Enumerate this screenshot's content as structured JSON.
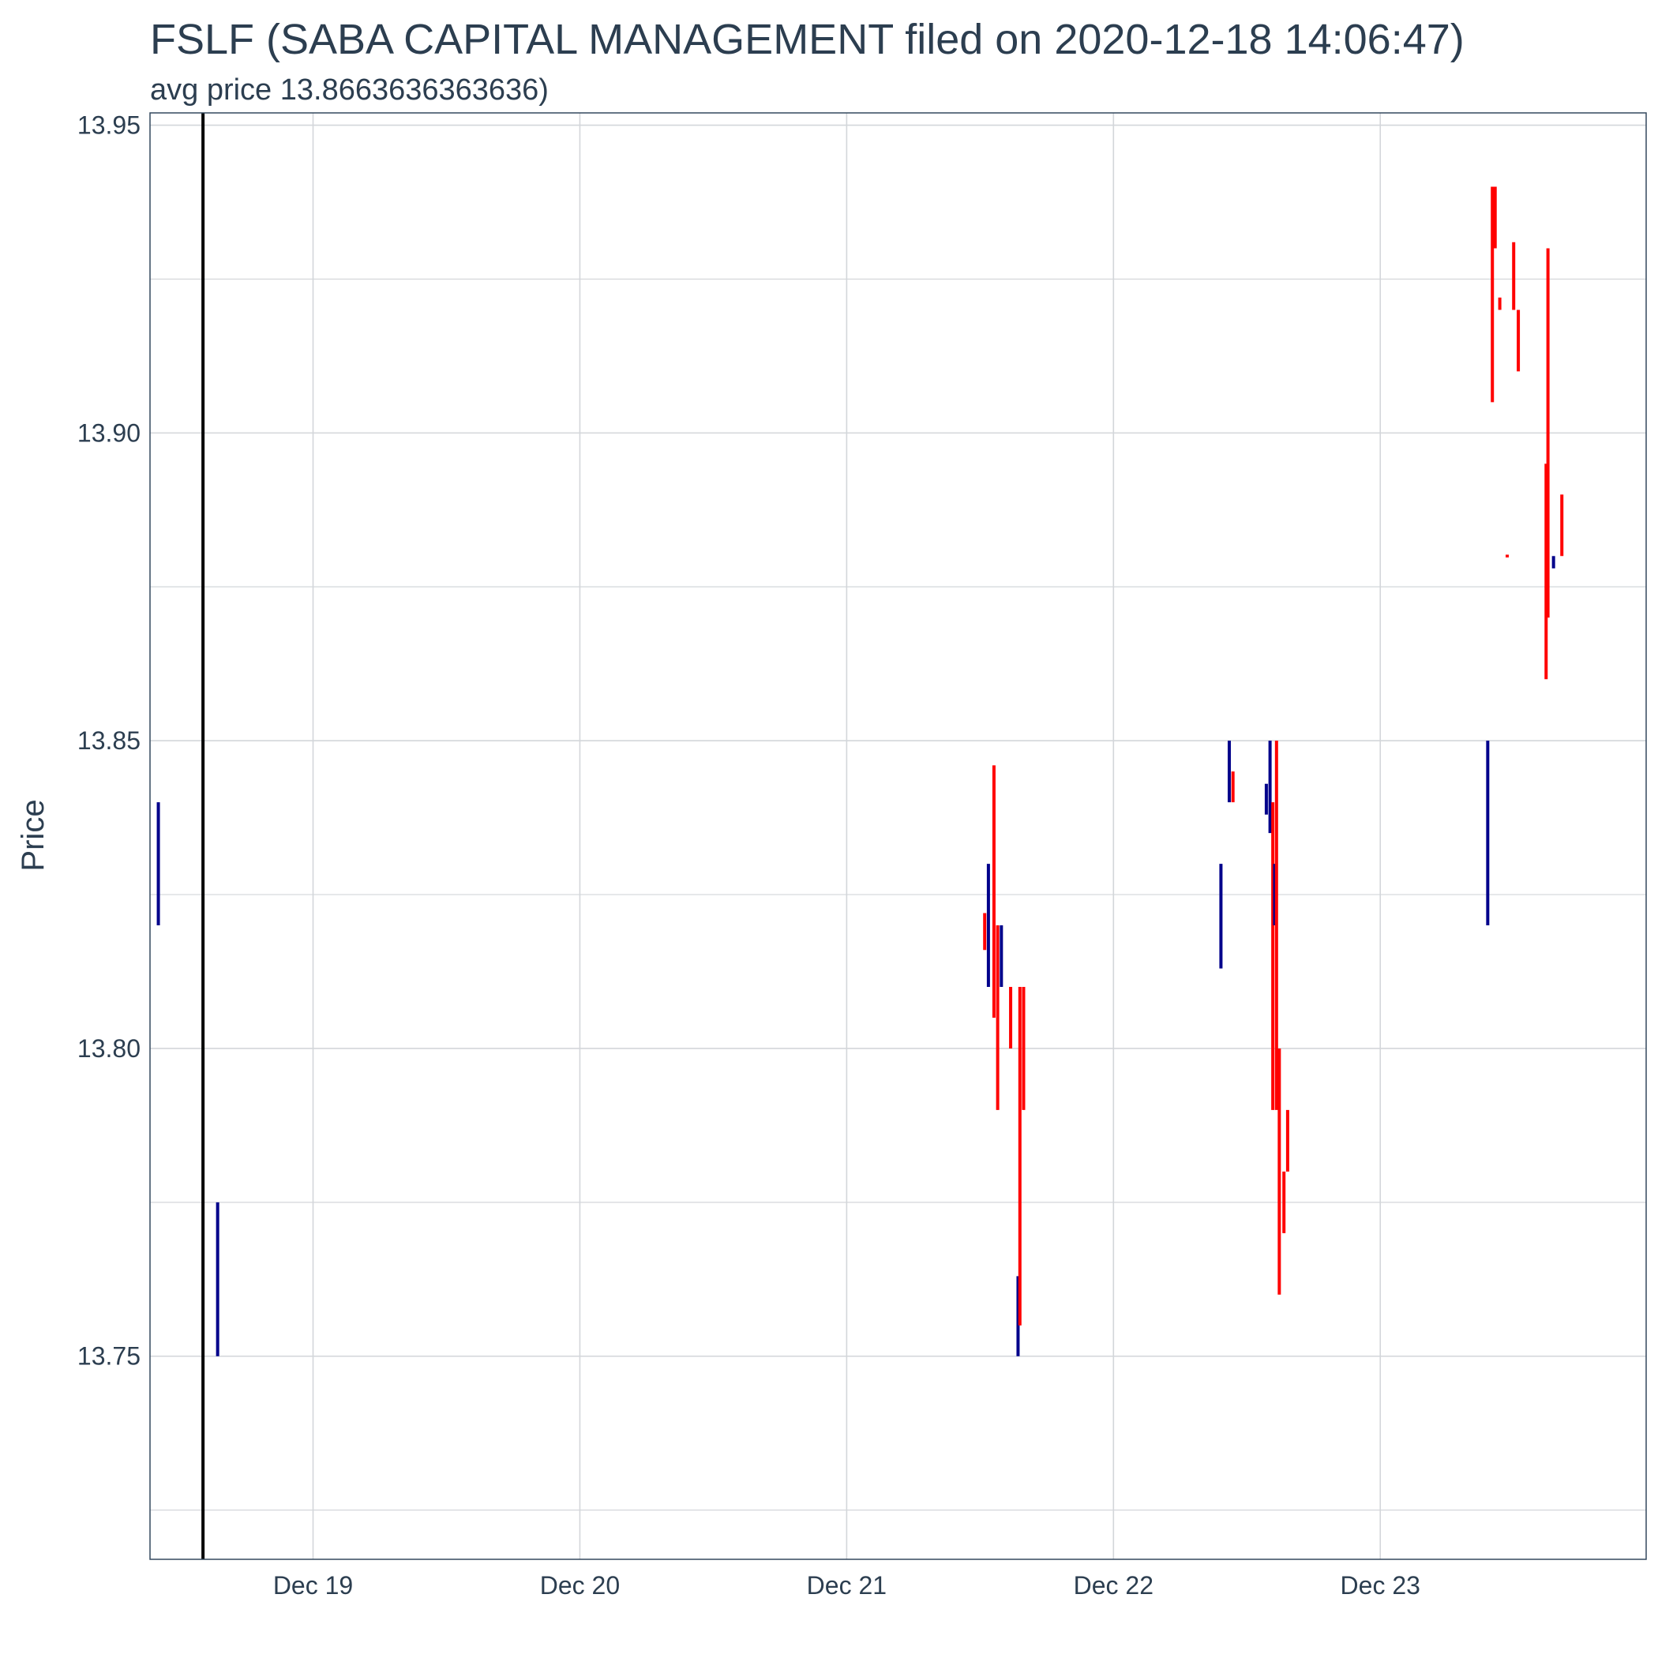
{
  "chart_data": {
    "type": "ohlc",
    "title": "FSLF (SABA CAPITAL MANAGEMENT filed on 2020-12-18 14:06:47)",
    "subtitle": "avg price 13.8663636363636)",
    "xlabel": "",
    "ylabel": "Price",
    "x_axis_type": "date",
    "xlim": [
      "2020-12-18T09:20",
      "2020-12-23T23:55"
    ],
    "ylim": [
      13.717,
      13.952
    ],
    "x_ticks": [
      {
        "date": "2020-12-19T00:00",
        "label": "Dec 19"
      },
      {
        "date": "2020-12-20T00:00",
        "label": "Dec 20"
      },
      {
        "date": "2020-12-21T00:00",
        "label": "Dec 21"
      },
      {
        "date": "2020-12-22T00:00",
        "label": "Dec 22"
      },
      {
        "date": "2020-12-23T00:00",
        "label": "Dec 23"
      }
    ],
    "y_ticks": [
      13.75,
      13.8,
      13.85,
      13.9,
      13.95
    ],
    "y_tick_labels": [
      "13.75",
      "13.80",
      "13.85",
      "13.90",
      "13.95"
    ],
    "y_minor_ticks": [
      13.725,
      13.775,
      13.825,
      13.875,
      13.925
    ],
    "grid": true,
    "colors": {
      "up": "#00008b",
      "down": "#ff0000",
      "filing_line": "#000000",
      "grid": "#d3d6da",
      "text": "#2c3e50"
    },
    "filing_marker": "2020-12-18T14:06",
    "bars": [
      {
        "t": "2020-12-18T10:05",
        "low": 13.82,
        "high": 13.84,
        "dir": "up"
      },
      {
        "t": "2020-12-18T15:25",
        "low": 13.75,
        "high": 13.775,
        "dir": "up"
      },
      {
        "t": "2020-12-21T12:25",
        "low": 13.816,
        "high": 13.822,
        "dir": "down"
      },
      {
        "t": "2020-12-21T12:45",
        "low": 13.81,
        "high": 13.83,
        "dir": "up"
      },
      {
        "t": "2020-12-21T13:15",
        "low": 13.805,
        "high": 13.846,
        "dir": "down"
      },
      {
        "t": "2020-12-21T13:35",
        "low": 13.79,
        "high": 13.82,
        "dir": "down"
      },
      {
        "t": "2020-12-21T13:55",
        "low": 13.81,
        "high": 13.82,
        "dir": "up"
      },
      {
        "t": "2020-12-21T14:45",
        "low": 13.8,
        "high": 13.81,
        "dir": "down"
      },
      {
        "t": "2020-12-21T15:25",
        "low": 13.75,
        "high": 13.763,
        "dir": "up"
      },
      {
        "t": "2020-12-21T15:35",
        "low": 13.755,
        "high": 13.81,
        "dir": "down"
      },
      {
        "t": "2020-12-21T15:55",
        "low": 13.79,
        "high": 13.81,
        "dir": "down"
      },
      {
        "t": "2020-12-22T09:40",
        "low": 13.813,
        "high": 13.83,
        "dir": "up"
      },
      {
        "t": "2020-12-22T10:25",
        "low": 13.84,
        "high": 13.85,
        "dir": "up"
      },
      {
        "t": "2020-12-22T10:45",
        "low": 13.84,
        "high": 13.845,
        "dir": "down"
      },
      {
        "t": "2020-12-22T13:45",
        "low": 13.838,
        "high": 13.843,
        "dir": "up"
      },
      {
        "t": "2020-12-22T14:05",
        "low": 13.835,
        "high": 13.85,
        "dir": "up"
      },
      {
        "t": "2020-12-22T14:20",
        "low": 13.79,
        "high": 13.84,
        "dir": "down"
      },
      {
        "t": "2020-12-22T14:30",
        "low": 13.82,
        "high": 13.83,
        "dir": "up"
      },
      {
        "t": "2020-12-22T14:40",
        "low": 13.79,
        "high": 13.85,
        "dir": "down"
      },
      {
        "t": "2020-12-22T14:55",
        "low": 13.76,
        "high": 13.8,
        "dir": "down"
      },
      {
        "t": "2020-12-22T15:20",
        "low": 13.77,
        "high": 13.78,
        "dir": "down"
      },
      {
        "t": "2020-12-22T15:40",
        "low": 13.78,
        "high": 13.79,
        "dir": "down"
      },
      {
        "t": "2020-12-23T09:40",
        "low": 13.82,
        "high": 13.85,
        "dir": "up"
      },
      {
        "t": "2020-12-23T10:05",
        "low": 13.905,
        "high": 13.94,
        "dir": "down"
      },
      {
        "t": "2020-12-23T10:20",
        "low": 13.93,
        "high": 13.94,
        "dir": "down"
      },
      {
        "t": "2020-12-23T10:45",
        "low": 13.92,
        "high": 13.922,
        "dir": "down"
      },
      {
        "t": "2020-12-23T11:25",
        "low": 13.8799,
        "high": 13.8801,
        "dir": "down"
      },
      {
        "t": "2020-12-23T12:00",
        "low": 13.92,
        "high": 13.931,
        "dir": "down"
      },
      {
        "t": "2020-12-23T12:25",
        "low": 13.91,
        "high": 13.92,
        "dir": "down"
      },
      {
        "t": "2020-12-23T14:55",
        "low": 13.86,
        "high": 13.895,
        "dir": "down"
      },
      {
        "t": "2020-12-23T15:05",
        "low": 13.87,
        "high": 13.93,
        "dir": "down"
      },
      {
        "t": "2020-12-23T15:35",
        "low": 13.878,
        "high": 13.88,
        "dir": "up"
      },
      {
        "t": "2020-12-23T16:20",
        "low": 13.88,
        "high": 13.89,
        "dir": "down"
      }
    ]
  }
}
